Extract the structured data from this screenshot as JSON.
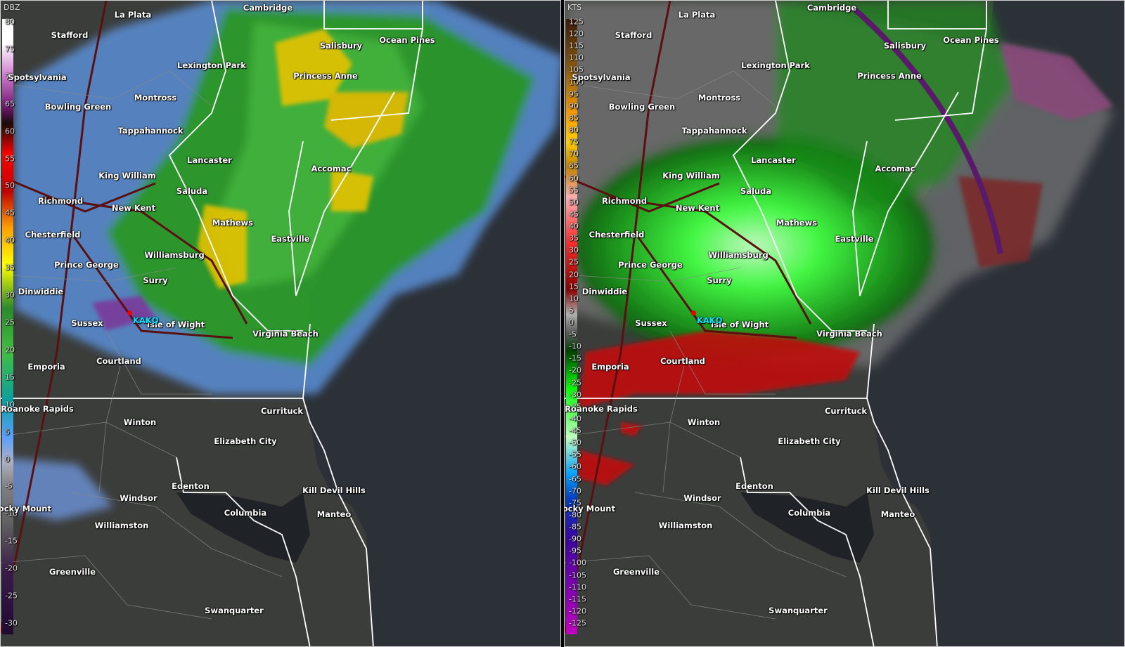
{
  "reflectivity_panel": {
    "unit": "DBZ",
    "scale_ticks": [
      "80",
      "75",
      "70",
      "65",
      "60",
      "55",
      "50",
      "45",
      "40",
      "35",
      "30",
      "25",
      "20",
      "15",
      "10",
      "5",
      "0",
      "-5",
      "-10",
      "-15",
      "-20",
      "-25",
      "-30"
    ]
  },
  "velocity_panel": {
    "unit": "KTS",
    "scale_ticks": [
      "125",
      "120",
      "115",
      "110",
      "105",
      "100",
      "95",
      "90",
      "85",
      "80",
      "75",
      "70",
      "65",
      "60",
      "55",
      "50",
      "45",
      "40",
      "35",
      "30",
      "25",
      "20",
      "15",
      "10",
      "5",
      "0",
      "-5",
      "-10",
      "-15",
      "-20",
      "-25",
      "-30",
      "-35",
      "-40",
      "-45",
      "-50",
      "-55",
      "-60",
      "-65",
      "-70",
      "-75",
      "-80",
      "-85",
      "-90",
      "-95",
      "-100",
      "-105",
      "-110",
      "-115",
      "-120",
      "-125"
    ]
  },
  "station": "KAKQ",
  "cities": [
    {
      "name": "La Plata"
    },
    {
      "name": "Cambridge"
    },
    {
      "name": "Stafford"
    },
    {
      "name": "Salisbury"
    },
    {
      "name": "Ocean Pines"
    },
    {
      "name": "Lexington Park"
    },
    {
      "name": "Spotsylvania"
    },
    {
      "name": "Princess Anne"
    },
    {
      "name": "Montross"
    },
    {
      "name": "Bowling Green"
    },
    {
      "name": "Tappahannock"
    },
    {
      "name": "Lancaster"
    },
    {
      "name": "Accomac"
    },
    {
      "name": "King William"
    },
    {
      "name": "Saluda"
    },
    {
      "name": "Richmond"
    },
    {
      "name": "New Kent"
    },
    {
      "name": "Mathews"
    },
    {
      "name": "Chesterfield"
    },
    {
      "name": "Eastville"
    },
    {
      "name": "Williamsburg"
    },
    {
      "name": "Prince George"
    },
    {
      "name": "Surry"
    },
    {
      "name": "Dinwiddie"
    },
    {
      "name": "Sussex"
    },
    {
      "name": "Isle of Wight"
    },
    {
      "name": "Virginia Beach"
    },
    {
      "name": "Emporia"
    },
    {
      "name": "Courtland"
    },
    {
      "name": "Roanoke Rapids"
    },
    {
      "name": "Currituck"
    },
    {
      "name": "Winton"
    },
    {
      "name": "Elizabeth City"
    },
    {
      "name": "Edenton"
    },
    {
      "name": "Kill Devil Hills"
    },
    {
      "name": "Windsor"
    },
    {
      "name": "Rocky Mount"
    },
    {
      "name": "Columbia"
    },
    {
      "name": "Manteo"
    },
    {
      "name": "Williamston"
    },
    {
      "name": "Greenville"
    },
    {
      "name": "Swanquarter"
    }
  ],
  "colors": {
    "land": "#3a3c3a",
    "water": "#2c3138",
    "boundary": "#ffffff",
    "roads": "#5a1010",
    "station_label": "#00e5ff"
  }
}
